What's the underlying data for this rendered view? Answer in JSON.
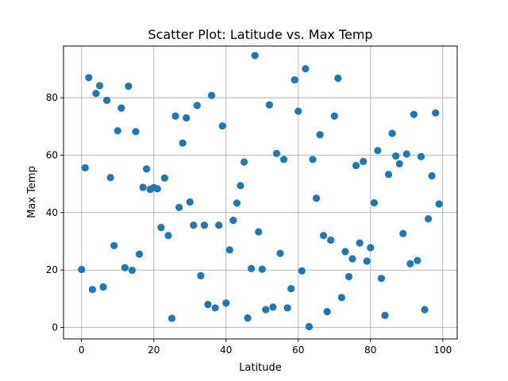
{
  "chart_data": {
    "type": "scatter",
    "title": "Scatter Plot: Latitude vs. Max Temp",
    "xlabel": "Latitude",
    "ylabel": "Max Temp",
    "xlim": [
      -5,
      104
    ],
    "ylim": [
      -4,
      98
    ],
    "xticks": [
      0,
      20,
      40,
      60,
      80,
      100
    ],
    "yticks": [
      0,
      20,
      40,
      60,
      80
    ],
    "grid": true,
    "marker_color": "#1f77b4",
    "series": [
      {
        "points": [
          [
            0,
            20.2
          ],
          [
            1,
            55.6
          ],
          [
            2,
            87
          ],
          [
            3,
            13.2
          ],
          [
            4,
            81.5
          ],
          [
            5,
            84.2
          ],
          [
            6,
            14.1
          ],
          [
            7,
            79.1
          ],
          [
            8,
            52.2
          ],
          [
            9,
            28.5
          ],
          [
            10,
            68.5
          ],
          [
            11,
            76.4
          ],
          [
            12,
            20.8
          ],
          [
            13,
            84
          ],
          [
            14,
            19.9
          ],
          [
            15,
            68.2
          ],
          [
            16,
            25.5
          ],
          [
            17,
            48.8
          ],
          [
            18,
            55.2
          ],
          [
            19,
            48.1
          ],
          [
            20,
            48.7
          ],
          [
            21,
            48.3
          ],
          [
            22,
            34.8
          ],
          [
            23,
            52
          ],
          [
            24,
            32
          ],
          [
            25,
            3.2
          ],
          [
            26,
            73.6
          ],
          [
            27,
            41.8
          ],
          [
            28,
            64.2
          ],
          [
            29,
            73
          ],
          [
            30,
            43.7
          ],
          [
            31,
            35.6
          ],
          [
            32,
            77.3
          ],
          [
            33,
            18
          ],
          [
            34,
            35.6
          ],
          [
            35,
            8
          ],
          [
            36,
            80.8
          ],
          [
            37,
            6.8
          ],
          [
            38,
            35.6
          ],
          [
            39,
            70.2
          ],
          [
            40,
            8.5
          ],
          [
            41,
            27
          ],
          [
            42,
            37.3
          ],
          [
            43,
            43.3
          ],
          [
            44,
            49.4
          ],
          [
            45,
            57.6
          ],
          [
            46,
            3.3
          ],
          [
            47,
            20.5
          ],
          [
            48,
            94.7
          ],
          [
            49,
            33.3
          ],
          [
            50,
            20.3
          ],
          [
            51,
            6.2
          ],
          [
            52,
            77.5
          ],
          [
            53,
            7.1
          ],
          [
            54,
            60.6
          ],
          [
            55,
            25.8
          ],
          [
            56,
            58.5
          ],
          [
            57,
            6.8
          ],
          [
            58,
            13.5
          ],
          [
            59,
            86.2
          ],
          [
            60,
            75.3
          ],
          [
            61,
            19.7
          ],
          [
            62,
            90.1
          ],
          [
            63,
            0.3
          ],
          [
            64,
            58.5
          ],
          [
            65,
            45
          ],
          [
            66,
            67.1
          ],
          [
            67,
            32
          ],
          [
            68,
            5.5
          ],
          [
            69,
            30.4
          ],
          [
            70,
            73.6
          ],
          [
            71,
            86.8
          ],
          [
            72,
            10.4
          ],
          [
            73,
            26.4
          ],
          [
            74,
            17.7
          ],
          [
            75,
            23.9
          ],
          [
            76,
            56.4
          ],
          [
            77,
            29.4
          ],
          [
            78,
            57.8
          ],
          [
            79,
            23.1
          ],
          [
            80,
            27.8
          ],
          [
            81,
            43.4
          ],
          [
            82,
            61.6
          ],
          [
            83,
            17.1
          ],
          [
            84,
            4.2
          ],
          [
            85,
            53.3
          ],
          [
            86,
            67.6
          ],
          [
            87,
            59.7
          ],
          [
            88,
            57
          ],
          [
            89,
            32.7
          ],
          [
            90,
            60.4
          ],
          [
            91,
            22.2
          ],
          [
            92,
            74.2
          ],
          [
            93,
            23.3
          ],
          [
            94,
            59.5
          ],
          [
            95,
            6.2
          ],
          [
            96,
            37.8
          ],
          [
            97,
            52.8
          ],
          [
            98,
            74.7
          ],
          [
            99,
            43
          ]
        ]
      }
    ]
  }
}
